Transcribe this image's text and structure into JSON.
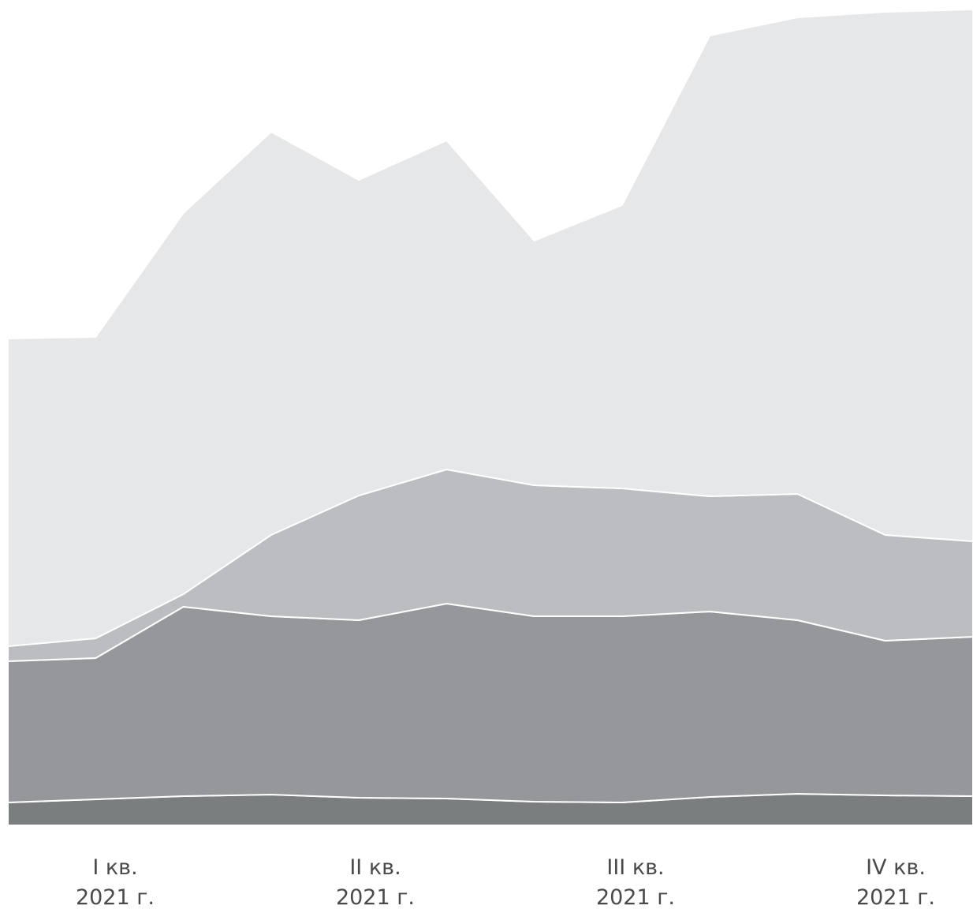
{
  "chart_data": {
    "type": "area",
    "stacked": true,
    "categories": [
      "I кв. 2021 г.",
      "",
      "",
      "II кв. 2021 г.",
      "",
      "",
      "III кв. 2021 г.",
      "",
      "",
      "IV кв. 2021 г.",
      "",
      ""
    ],
    "tick_labels": [
      {
        "line1": "I кв.",
        "line2": "2021 г."
      },
      {
        "line1": "II кв.",
        "line2": "2021 г."
      },
      {
        "line1": "III кв.",
        "line2": "2021 г."
      },
      {
        "line1": "IV кв.",
        "line2": "2021 г."
      }
    ],
    "ylim": [
      0,
      1034
    ],
    "series": [
      {
        "color": "#7b7e7f",
        "values": [
          29,
          33,
          37,
          39,
          35,
          34,
          30,
          29,
          36,
          40,
          38,
          37
        ]
      },
      {
        "color": "#96979b",
        "values": [
          179,
          179,
          240,
          226,
          225,
          247,
          235,
          236,
          235,
          220,
          196,
          202
        ]
      },
      {
        "color": "#bcbdc1",
        "values": [
          19,
          25,
          16,
          103,
          158,
          170,
          166,
          162,
          146,
          160,
          134,
          121
        ]
      },
      {
        "color": "#e6e7e9",
        "values": [
          390,
          382,
          483,
          511,
          400,
          417,
          310,
          359,
          584,
          604,
          663,
          674
        ]
      }
    ],
    "grid": false,
    "legend": "none"
  }
}
